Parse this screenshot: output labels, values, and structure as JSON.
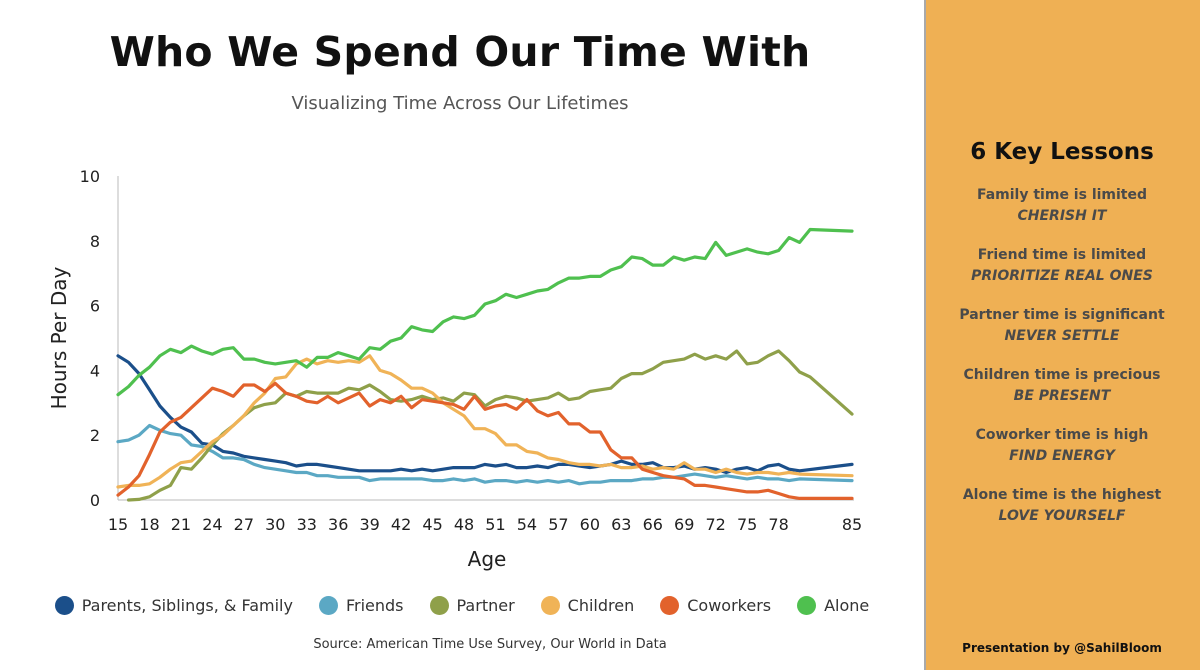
{
  "title": "Who We Spend Our Time With",
  "subtitle": "Visualizing Time Across Our Lifetimes",
  "source": "Source: American Time Use Survey, Our World in Data",
  "panel": {
    "title": "6 Key Lessons",
    "lessons": [
      {
        "text": "Family time is limited",
        "action": "CHERISH IT"
      },
      {
        "text": "Friend time is limited",
        "action": "PRIORITIZE REAL ONES"
      },
      {
        "text": "Partner time is significant",
        "action": "NEVER SETTLE"
      },
      {
        "text": "Children time is precious",
        "action": "BE PRESENT"
      },
      {
        "text": "Coworker time is high",
        "action": "FIND ENERGY"
      },
      {
        "text": "Alone time is the highest",
        "action": "LOVE YOURSELF"
      }
    ],
    "credit": "Presentation by @SahilBloom",
    "background": "#efb054"
  },
  "chart_data": {
    "type": "line",
    "xlabel": "Age",
    "ylabel": "Hours Per Day",
    "xlim": [
      15,
      85
    ],
    "ylim": [
      0,
      10
    ],
    "x_ticks": [
      15,
      18,
      21,
      24,
      27,
      30,
      33,
      36,
      39,
      42,
      45,
      48,
      51,
      54,
      57,
      60,
      63,
      66,
      69,
      72,
      75,
      78,
      85
    ],
    "y_ticks": [
      0,
      2,
      4,
      6,
      8,
      10
    ],
    "legend_position": "bottom",
    "series": [
      {
        "name": "Parents, Siblings, & Family",
        "color": "#1b4f8a",
        "x": [
          15,
          16,
          17,
          18,
          19,
          20,
          21,
          22,
          23,
          24,
          25,
          26,
          27,
          28,
          29,
          30,
          31,
          32,
          33,
          34,
          35,
          36,
          37,
          38,
          39,
          40,
          41,
          42,
          43,
          44,
          45,
          46,
          47,
          48,
          49,
          50,
          51,
          52,
          53,
          54,
          55,
          56,
          57,
          58,
          59,
          60,
          61,
          62,
          63,
          64,
          65,
          66,
          67,
          68,
          69,
          70,
          71,
          72,
          73,
          74,
          75,
          76,
          77,
          78,
          79,
          80,
          85
        ],
        "values": [
          4.45,
          4.25,
          3.9,
          3.4,
          2.9,
          2.55,
          2.25,
          2.1,
          1.75,
          1.7,
          1.5,
          1.45,
          1.35,
          1.3,
          1.25,
          1.2,
          1.15,
          1.05,
          1.1,
          1.1,
          1.05,
          1.0,
          0.95,
          0.9,
          0.9,
          0.9,
          0.9,
          0.95,
          0.9,
          0.95,
          0.9,
          0.95,
          1.0,
          1.0,
          1.0,
          1.1,
          1.05,
          1.1,
          1.0,
          1.0,
          1.05,
          1.0,
          1.1,
          1.1,
          1.05,
          1.0,
          1.05,
          1.1,
          1.2,
          1.1,
          1.1,
          1.15,
          1.0,
          1.0,
          1.05,
          0.95,
          1.0,
          0.95,
          0.85,
          0.95,
          1.0,
          0.9,
          1.05,
          1.1,
          0.95,
          0.9,
          1.1
        ]
      },
      {
        "name": "Friends",
        "color": "#5ba8c4",
        "x": [
          15,
          16,
          17,
          18,
          19,
          20,
          21,
          22,
          23,
          24,
          25,
          26,
          27,
          28,
          29,
          30,
          31,
          32,
          33,
          34,
          35,
          36,
          37,
          38,
          39,
          40,
          41,
          42,
          43,
          44,
          45,
          46,
          47,
          48,
          49,
          50,
          51,
          52,
          53,
          54,
          55,
          56,
          57,
          58,
          59,
          60,
          61,
          62,
          63,
          64,
          65,
          66,
          67,
          68,
          69,
          70,
          71,
          72,
          73,
          74,
          75,
          76,
          77,
          78,
          79,
          80,
          85
        ],
        "values": [
          1.8,
          1.85,
          2.0,
          2.3,
          2.15,
          2.05,
          2.0,
          1.7,
          1.65,
          1.5,
          1.3,
          1.3,
          1.25,
          1.1,
          1.0,
          0.95,
          0.9,
          0.85,
          0.85,
          0.75,
          0.75,
          0.7,
          0.7,
          0.7,
          0.6,
          0.65,
          0.65,
          0.65,
          0.65,
          0.65,
          0.6,
          0.6,
          0.65,
          0.6,
          0.65,
          0.55,
          0.6,
          0.6,
          0.55,
          0.6,
          0.55,
          0.6,
          0.55,
          0.6,
          0.5,
          0.55,
          0.55,
          0.6,
          0.6,
          0.6,
          0.65,
          0.65,
          0.7,
          0.7,
          0.75,
          0.8,
          0.75,
          0.7,
          0.75,
          0.7,
          0.65,
          0.7,
          0.65,
          0.65,
          0.6,
          0.65,
          0.6
        ]
      },
      {
        "name": "Partner",
        "color": "#8fa04a",
        "x": [
          16,
          17,
          18,
          19,
          20,
          21,
          22,
          23,
          24,
          25,
          26,
          27,
          28,
          29,
          30,
          31,
          32,
          33,
          34,
          35,
          36,
          37,
          38,
          39,
          40,
          41,
          42,
          43,
          44,
          45,
          46,
          47,
          48,
          49,
          50,
          51,
          52,
          53,
          54,
          55,
          56,
          57,
          58,
          59,
          60,
          61,
          62,
          63,
          64,
          65,
          66,
          67,
          68,
          69,
          70,
          71,
          72,
          73,
          74,
          75,
          76,
          77,
          78,
          79,
          80,
          81,
          85
        ],
        "values": [
          0.0,
          0.02,
          0.1,
          0.3,
          0.45,
          1.0,
          0.95,
          1.3,
          1.7,
          2.05,
          2.3,
          2.6,
          2.85,
          2.95,
          3.0,
          3.3,
          3.2,
          3.35,
          3.3,
          3.3,
          3.3,
          3.45,
          3.4,
          3.55,
          3.35,
          3.1,
          3.05,
          3.1,
          3.2,
          3.1,
          3.15,
          3.05,
          3.3,
          3.25,
          2.9,
          3.1,
          3.2,
          3.15,
          3.05,
          3.1,
          3.15,
          3.3,
          3.1,
          3.15,
          3.35,
          3.4,
          3.45,
          3.75,
          3.9,
          3.9,
          4.05,
          4.25,
          4.3,
          4.35,
          4.5,
          4.35,
          4.45,
          4.35,
          4.6,
          4.2,
          4.25,
          4.45,
          4.6,
          4.3,
          3.95,
          3.8,
          2.65
        ]
      },
      {
        "name": "Children",
        "color": "#f0b357",
        "x": [
          15,
          16,
          17,
          18,
          19,
          20,
          21,
          22,
          23,
          24,
          25,
          26,
          27,
          28,
          29,
          30,
          31,
          32,
          33,
          34,
          35,
          36,
          37,
          38,
          39,
          40,
          41,
          42,
          43,
          44,
          45,
          46,
          47,
          48,
          49,
          50,
          51,
          52,
          53,
          54,
          55,
          56,
          57,
          58,
          59,
          60,
          61,
          62,
          63,
          64,
          65,
          66,
          67,
          68,
          69,
          70,
          71,
          72,
          73,
          74,
          75,
          76,
          77,
          78,
          79,
          80,
          85
        ],
        "values": [
          0.4,
          0.45,
          0.45,
          0.5,
          0.7,
          0.95,
          1.15,
          1.2,
          1.5,
          1.8,
          2.0,
          2.3,
          2.6,
          3.0,
          3.3,
          3.75,
          3.8,
          4.2,
          4.35,
          4.2,
          4.3,
          4.25,
          4.3,
          4.25,
          4.45,
          4.0,
          3.9,
          3.7,
          3.45,
          3.45,
          3.3,
          3.0,
          2.8,
          2.6,
          2.2,
          2.2,
          2.05,
          1.7,
          1.7,
          1.5,
          1.45,
          1.3,
          1.25,
          1.15,
          1.1,
          1.1,
          1.05,
          1.1,
          1.0,
          1.0,
          1.05,
          0.95,
          1.0,
          0.95,
          1.15,
          0.95,
          0.95,
          0.85,
          0.95,
          0.85,
          0.8,
          0.85,
          0.85,
          0.8,
          0.85,
          0.8,
          0.75
        ]
      },
      {
        "name": "Coworkers",
        "color": "#e2622c",
        "x": [
          15,
          16,
          17,
          18,
          19,
          20,
          21,
          22,
          23,
          24,
          25,
          26,
          27,
          28,
          29,
          30,
          31,
          32,
          33,
          34,
          35,
          36,
          37,
          38,
          39,
          40,
          41,
          42,
          43,
          44,
          45,
          46,
          47,
          48,
          49,
          50,
          51,
          52,
          53,
          54,
          55,
          56,
          57,
          58,
          59,
          60,
          61,
          62,
          63,
          64,
          65,
          66,
          67,
          68,
          69,
          70,
          71,
          72,
          73,
          74,
          75,
          76,
          77,
          78,
          79,
          80,
          85
        ],
        "values": [
          0.15,
          0.4,
          0.75,
          1.4,
          2.1,
          2.4,
          2.55,
          2.85,
          3.15,
          3.45,
          3.35,
          3.2,
          3.55,
          3.55,
          3.35,
          3.6,
          3.3,
          3.2,
          3.05,
          3.0,
          3.2,
          3.0,
          3.15,
          3.3,
          2.9,
          3.1,
          3.0,
          3.2,
          2.85,
          3.1,
          3.05,
          3.0,
          2.95,
          2.8,
          3.2,
          2.8,
          2.9,
          2.95,
          2.8,
          3.1,
          2.75,
          2.6,
          2.7,
          2.35,
          2.35,
          2.1,
          2.1,
          1.55,
          1.3,
          1.3,
          0.95,
          0.85,
          0.75,
          0.7,
          0.65,
          0.45,
          0.45,
          0.4,
          0.35,
          0.3,
          0.25,
          0.25,
          0.3,
          0.2,
          0.1,
          0.05,
          0.05
        ]
      },
      {
        "name": "Alone",
        "color": "#4fc04f",
        "x": [
          15,
          16,
          17,
          18,
          19,
          20,
          21,
          22,
          23,
          24,
          25,
          26,
          27,
          28,
          29,
          30,
          31,
          32,
          33,
          34,
          35,
          36,
          37,
          38,
          39,
          40,
          41,
          42,
          43,
          44,
          45,
          46,
          47,
          48,
          49,
          50,
          51,
          52,
          53,
          54,
          55,
          56,
          57,
          58,
          59,
          60,
          61,
          62,
          63,
          64,
          65,
          66,
          67,
          68,
          69,
          70,
          71,
          72,
          73,
          74,
          75,
          76,
          77,
          78,
          79,
          80,
          81,
          85
        ],
        "values": [
          3.25,
          3.5,
          3.85,
          4.1,
          4.45,
          4.65,
          4.55,
          4.75,
          4.6,
          4.5,
          4.65,
          4.7,
          4.35,
          4.35,
          4.25,
          4.2,
          4.25,
          4.3,
          4.1,
          4.4,
          4.4,
          4.55,
          4.45,
          4.35,
          4.7,
          4.65,
          4.9,
          5.0,
          5.35,
          5.25,
          5.2,
          5.5,
          5.65,
          5.6,
          5.7,
          6.05,
          6.15,
          6.35,
          6.25,
          6.35,
          6.45,
          6.5,
          6.7,
          6.85,
          6.85,
          6.9,
          6.9,
          7.1,
          7.2,
          7.5,
          7.45,
          7.25,
          7.25,
          7.5,
          7.4,
          7.5,
          7.45,
          7.95,
          7.55,
          7.65,
          7.75,
          7.65,
          7.6,
          7.7,
          8.1,
          7.95,
          8.35,
          8.3
        ]
      }
    ]
  }
}
